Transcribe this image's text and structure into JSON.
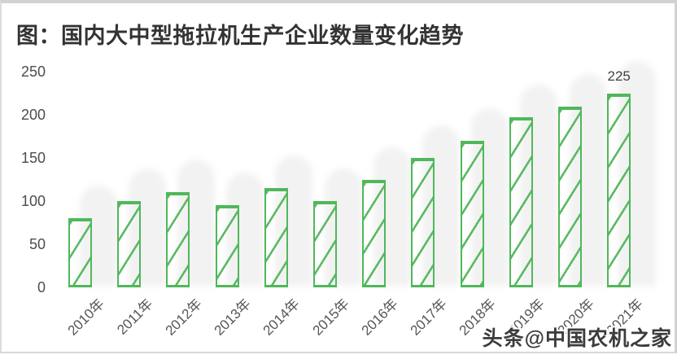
{
  "title": "图：国内大中型拖拉机生产企业数量变化趋势",
  "watermark": "头条@中国农机之家",
  "chart_data": {
    "type": "bar",
    "title": "国内大中型拖拉机生产企业数量变化趋势",
    "categories": [
      "2010年",
      "2011年",
      "2012年",
      "2013年",
      "2014年",
      "2015年",
      "2016年",
      "2017年",
      "2018年",
      "2019年",
      "2020年",
      "2021年"
    ],
    "values": [
      80,
      100,
      110,
      95,
      115,
      100,
      125,
      150,
      170,
      197,
      209,
      225
    ],
    "xlabel": "",
    "ylabel": "",
    "y_ticks": [
      0,
      50,
      100,
      150,
      200,
      250
    ],
    "ylim": [
      0,
      250
    ],
    "grid": false,
    "legend": "none",
    "bar_style": "green-outline-diagonal-hatch",
    "bar_color": "#4fb85a",
    "data_label": {
      "index": 11,
      "text": "225"
    }
  }
}
